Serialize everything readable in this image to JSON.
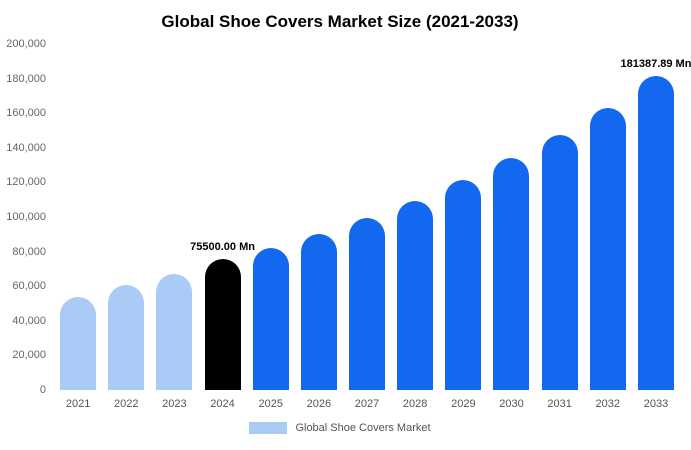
{
  "chart_data": {
    "type": "bar",
    "title": "Global Shoe Covers Market Size (2021-2033)",
    "xlabel": "",
    "ylabel": "",
    "ylim": [
      0,
      200000
    ],
    "grid": false,
    "legend_position": "bottom",
    "categories": [
      "2021",
      "2022",
      "2023",
      "2024",
      "2025",
      "2026",
      "2027",
      "2028",
      "2029",
      "2030",
      "2031",
      "2032",
      "2033"
    ],
    "values": [
      54000,
      60500,
      67000,
      75500,
      82000,
      90000,
      99500,
      109500,
      121500,
      134000,
      147500,
      163000,
      181387.89
    ],
    "y_ticks": [
      "0",
      "20,000",
      "40,000",
      "60,000",
      "80,000",
      "100,000",
      "120,000",
      "140,000",
      "160,000",
      "180,000",
      "200,000"
    ],
    "colors": {
      "past": "#a9cbf5",
      "current": "#000000",
      "forecast": "#1368f0"
    },
    "bar_color_keys": [
      "past",
      "past",
      "past",
      "current",
      "forecast",
      "forecast",
      "forecast",
      "forecast",
      "forecast",
      "forecast",
      "forecast",
      "forecast",
      "forecast"
    ],
    "annotations": [
      {
        "category": "2024",
        "text": "75500.00 Mn"
      },
      {
        "category": "2033",
        "text": "181387.89 Mn"
      }
    ],
    "legend": [
      {
        "label": "Global Shoe Covers Market",
        "color_key": "past"
      }
    ]
  }
}
